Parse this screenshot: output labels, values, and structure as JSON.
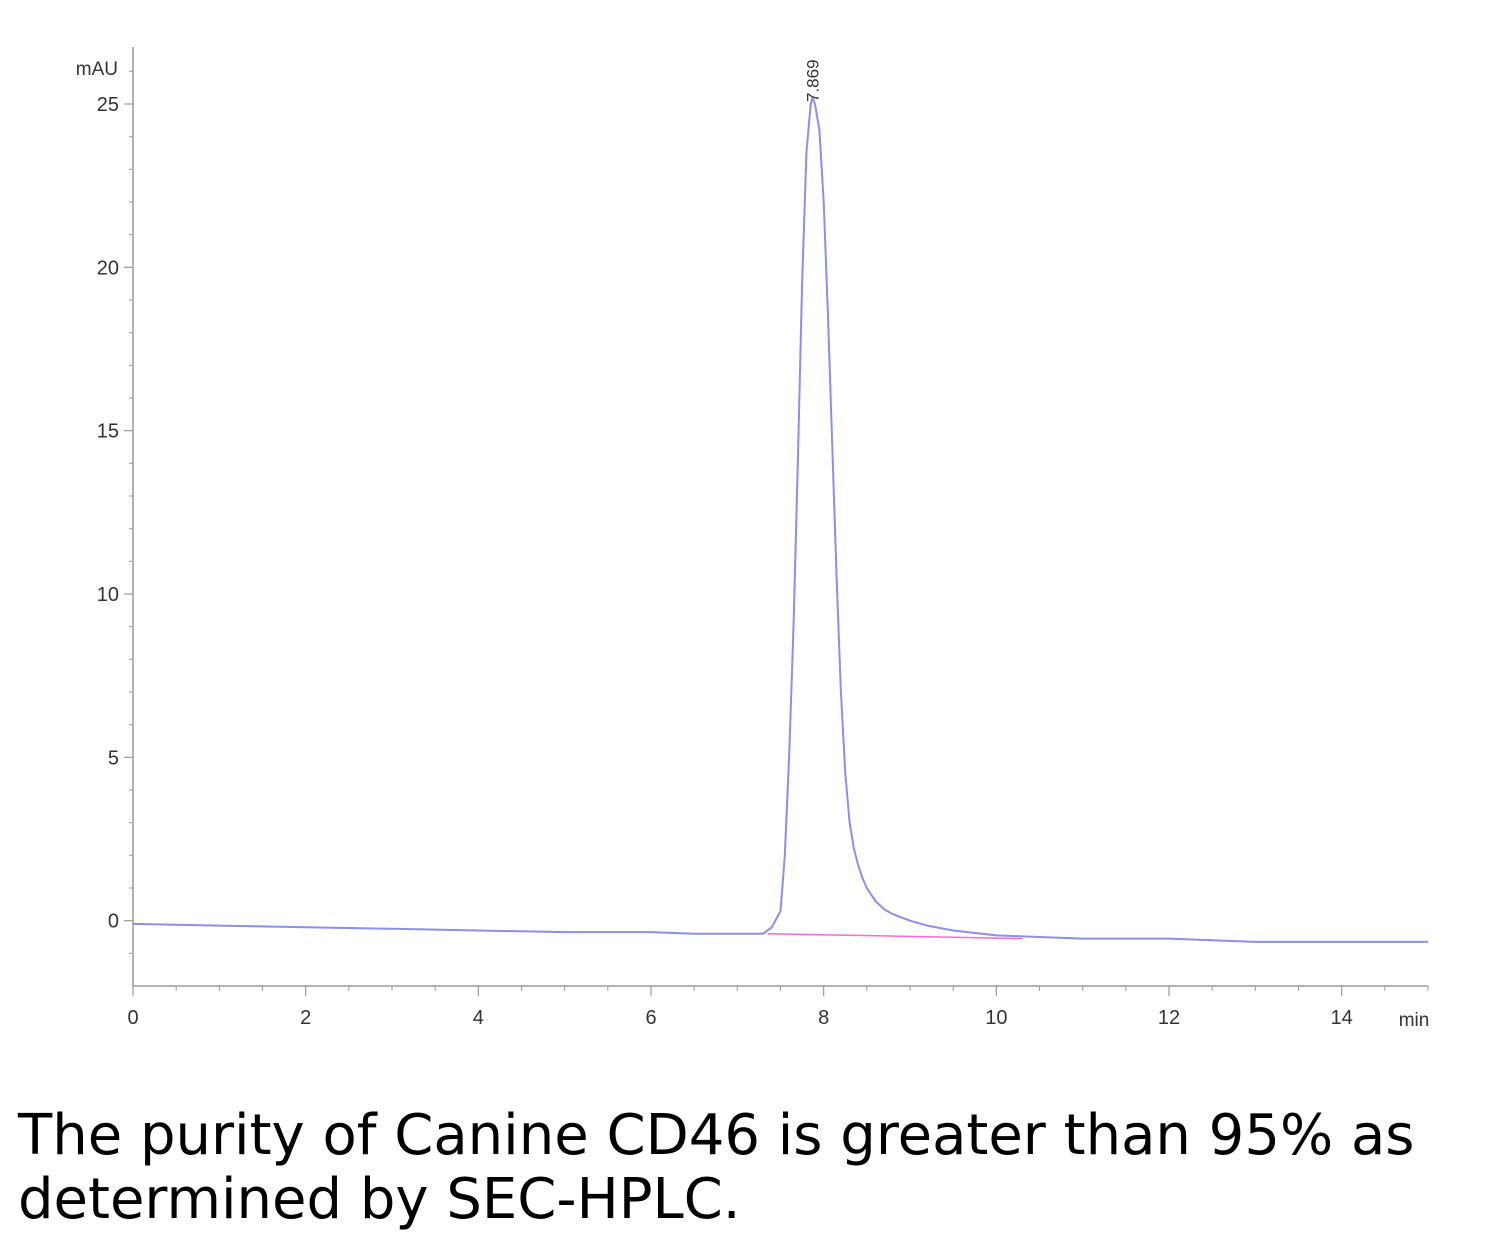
{
  "chart_data": {
    "type": "line",
    "x_unit": "min",
    "y_unit": "mAU",
    "xlim": [
      0,
      15
    ],
    "ylim": [
      -2,
      26.5
    ],
    "x_ticks": [
      0,
      2,
      4,
      6,
      8,
      10,
      12,
      14
    ],
    "y_ticks": [
      0,
      5,
      10,
      15,
      20,
      25
    ],
    "grid": false,
    "peak_label": "7.869",
    "peak": {
      "x": 7.869,
      "y": 25.0
    },
    "series": [
      {
        "color": "#8a8ff0",
        "x": [
          0,
          1,
          2,
          3,
          4,
          5,
          6,
          6.5,
          7,
          7.3,
          7.4,
          7.5,
          7.55,
          7.6,
          7.65,
          7.7,
          7.75,
          7.8,
          7.85,
          7.87,
          7.9,
          7.95,
          8.0,
          8.05,
          8.1,
          8.15,
          8.2,
          8.25,
          8.3,
          8.35,
          8.4,
          8.45,
          8.5,
          8.6,
          8.7,
          8.8,
          9.0,
          9.2,
          9.5,
          10.0,
          10.5,
          11.0,
          11.5,
          12.0,
          12.5,
          13.0,
          14.0,
          15.0
        ],
        "y": [
          -0.1,
          -0.15,
          -0.2,
          -0.25,
          -0.3,
          -0.35,
          -0.35,
          -0.4,
          -0.4,
          -0.4,
          -0.2,
          0.3,
          2.0,
          5.0,
          9.0,
          14.0,
          19.5,
          23.5,
          25.0,
          25.2,
          25.0,
          24.2,
          22.0,
          18.5,
          14.5,
          10.5,
          7.0,
          4.5,
          3.0,
          2.2,
          1.7,
          1.3,
          1.0,
          0.6,
          0.35,
          0.2,
          0.0,
          -0.15,
          -0.3,
          -0.45,
          -0.5,
          -0.55,
          -0.55,
          -0.55,
          -0.6,
          -0.65,
          -0.65,
          -0.65
        ]
      },
      {
        "color": "#ff66cc",
        "x": [
          7.35,
          10.3
        ],
        "y": [
          -0.4,
          -0.55
        ]
      }
    ]
  },
  "caption": "The purity of Canine CD46 is greater than 95% as determined by SEC-HPLC."
}
